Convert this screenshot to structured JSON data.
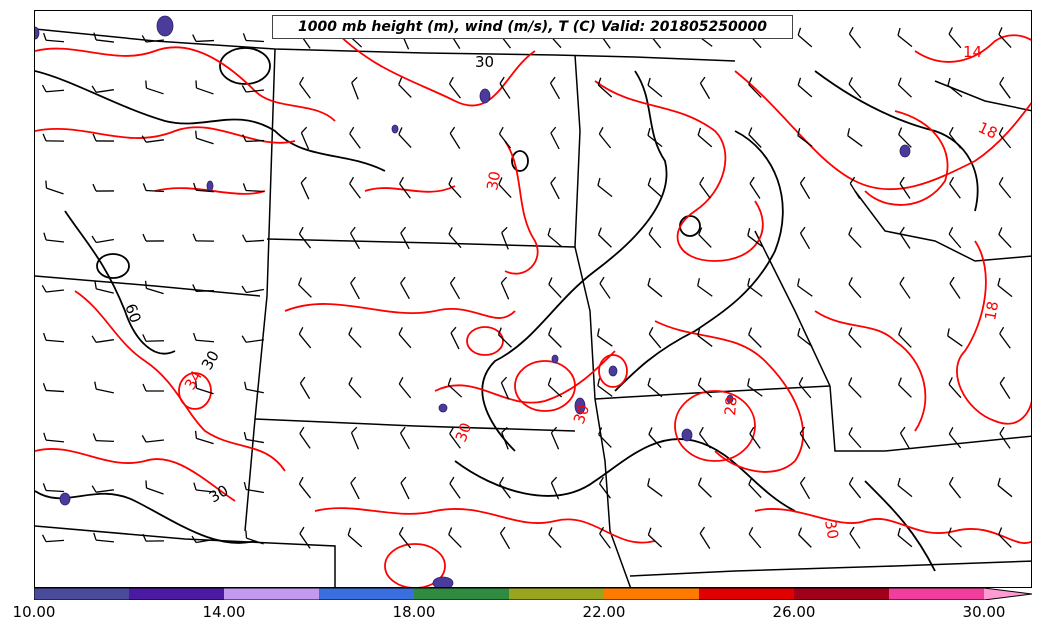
{
  "title": "1000 mb height (m), wind (m/s), T (C) Valid: 201805250000",
  "colors": {
    "temperature_contour": "#ff0000",
    "height_contour": "#000000",
    "border": "#000000",
    "highlight_fill": "#4b3b9a"
  },
  "contour_labels": [
    {
      "text": "30",
      "color": "black"
    },
    {
      "text": "14",
      "color": "red"
    },
    {
      "text": "18",
      "color": "red"
    },
    {
      "text": "30",
      "color": "red"
    },
    {
      "text": "18",
      "color": "red"
    },
    {
      "text": "60",
      "color": "black"
    },
    {
      "text": "30",
      "color": "black"
    },
    {
      "text": "34",
      "color": "red"
    },
    {
      "text": "28",
      "color": "red"
    },
    {
      "text": "30",
      "color": "red"
    },
    {
      "text": "30",
      "color": "red"
    },
    {
      "text": "30",
      "color": "black"
    },
    {
      "text": "30",
      "color": "red"
    }
  ],
  "colorbar": {
    "colors": [
      "#4b4b9b",
      "#4b1aa3",
      "#c29af0",
      "#3a6fe0",
      "#2e8b3f",
      "#9aa51f",
      "#ff7b00",
      "#e10000",
      "#a0001a",
      "#ef3e9c",
      "#ff9ad2"
    ],
    "ticks": [
      "10.00",
      "14.00",
      "18.00",
      "22.00",
      "26.00",
      "30.00"
    ]
  }
}
